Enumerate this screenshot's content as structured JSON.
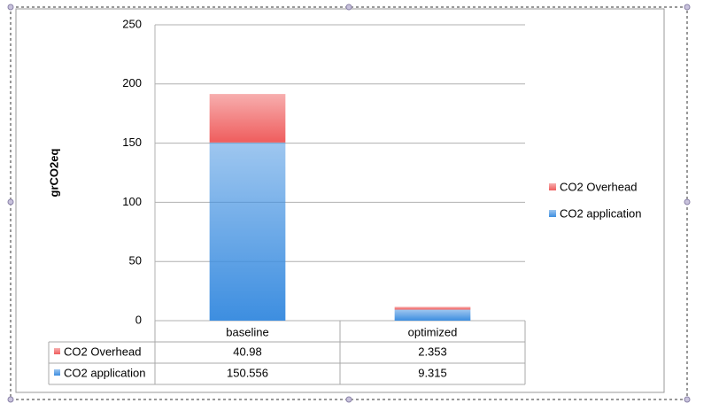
{
  "chart_data": {
    "type": "bar",
    "stacked": true,
    "ylabel": "grCO2eq",
    "categories": [
      "baseline",
      "optimized"
    ],
    "series": [
      {
        "name": "CO2 application",
        "color": "#3d8ee0",
        "values": [
          150.556,
          9.315
        ]
      },
      {
        "name": "CO2 Overhead",
        "color": "#ef5d5d",
        "values": [
          40.98,
          2.353
        ]
      }
    ],
    "ylim": [
      0,
      250
    ],
    "yticks": [
      0,
      50,
      100,
      150,
      200,
      250
    ],
    "grid": true,
    "legend": "right",
    "data_table": true
  }
}
